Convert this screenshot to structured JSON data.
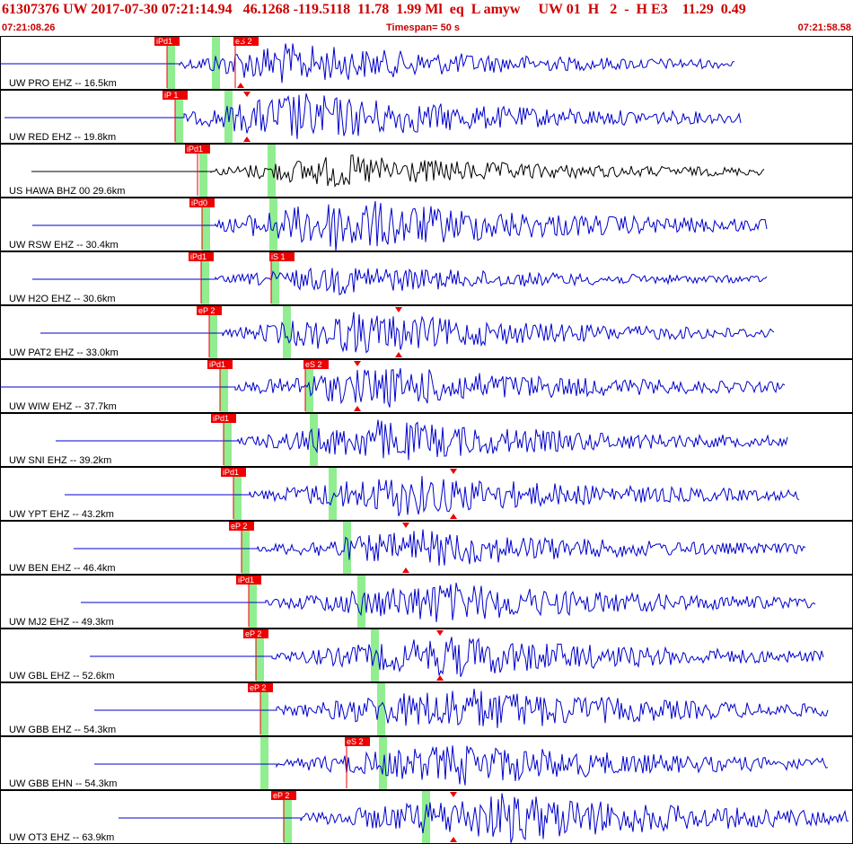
{
  "header": {
    "title": "61307376 UW 2017-07-30 07:21:14.94   46.1268 -119.5118  11.78  1.99 Ml  eq  L amyw     UW 01  H   2  -  H E3    11.29  0.49",
    "time_start": "07:21:08.26",
    "timespan": "Timespan=  50 s",
    "time_end": "07:21:58.58"
  },
  "colors": {
    "trace": "#0000cc",
    "trace_alt": "#000000",
    "pick": "#ee0000",
    "window": "#90ee90",
    "text": "#cc0000"
  },
  "traces": [
    {
      "label": "UW PRO EHZ -- 16.5km",
      "color": "#0000cc",
      "pre_start": 0,
      "onset": 200,
      "end": 818,
      "amp": 1.0,
      "p_label": "iPd1",
      "p_x": 186,
      "s_label": "eS 2",
      "s_x": 262,
      "green": [
        186,
        236
      ],
      "tri": 268
    },
    {
      "label": "UW RED EHZ -- 19.8km",
      "color": "#0000cc",
      "pre_start": 5,
      "onset": 205,
      "end": 825,
      "amp": 1.2,
      "p_label": "iP 1",
      "p_x": 195,
      "s_label": "",
      "s_x": 0,
      "green": [
        195,
        250
      ],
      "tri": 275
    },
    {
      "label": "US HAWA BHZ 00 29.6km",
      "color": "#000000",
      "pre_start": 35,
      "onset": 235,
      "end": 852,
      "amp": 0.8,
      "p_label": "iPd1",
      "p_x": 220,
      "s_label": "",
      "s_x": 0,
      "green": [
        222,
        298
      ],
      "tri": 0
    },
    {
      "label": "UW RSW EHZ -- 30.4km",
      "color": "#0000cc",
      "pre_start": 36,
      "onset": 240,
      "end": 855,
      "amp": 1.3,
      "p_label": "iPd0",
      "p_x": 225,
      "s_label": "",
      "s_x": 0,
      "green": [
        225,
        300
      ],
      "tri": 0
    },
    {
      "label": "UW H2O EHZ -- 30.6km",
      "color": "#0000cc",
      "pre_start": 36,
      "onset": 240,
      "end": 855,
      "amp": 0.7,
      "p_label": "iPd1",
      "p_x": 224,
      "s_label": "iS 1",
      "s_x": 302,
      "green": [
        224,
        302
      ],
      "tri": 0
    },
    {
      "label": "UW PAT2 EHZ -- 33.0km",
      "color": "#0000cc",
      "pre_start": 45,
      "onset": 248,
      "end": 862,
      "amp": 1.0,
      "p_label": "eP 2",
      "p_x": 233,
      "s_label": "",
      "s_x": 0,
      "green": [
        233,
        315
      ],
      "tri": 444
    },
    {
      "label": "UW WIW EHZ -- 37.7km",
      "color": "#0000cc",
      "pre_start": 0,
      "onset": 262,
      "end": 875,
      "amp": 1.0,
      "p_label": "iPd1",
      "p_x": 245,
      "s_label": "eS 2",
      "s_x": 340,
      "green": [
        245,
        340
      ],
      "tri": 398
    },
    {
      "label": "UW SNI EHZ -- 39.2km",
      "color": "#0000cc",
      "pre_start": 62,
      "onset": 265,
      "end": 878,
      "amp": 1.0,
      "p_label": "iPd1",
      "p_x": 249,
      "s_label": "",
      "s_x": 0,
      "green": [
        249,
        345
      ],
      "tri": 0
    },
    {
      "label": "UW YPT EHZ -- 43.2km",
      "color": "#0000cc",
      "pre_start": 72,
      "onset": 278,
      "end": 890,
      "amp": 1.0,
      "p_label": "iPd1",
      "p_x": 260,
      "s_label": "",
      "s_x": 0,
      "green": [
        260,
        366
      ],
      "tri": 505
    },
    {
      "label": "UW BEN EHZ -- 46.4km",
      "color": "#0000cc",
      "pre_start": 82,
      "onset": 287,
      "end": 898,
      "amp": 0.9,
      "p_label": "eP 2",
      "p_x": 269,
      "s_label": "",
      "s_x": 0,
      "green": [
        269,
        382
      ],
      "tri": 452
    },
    {
      "label": "UW MJ2 EHZ -- 49.3km",
      "color": "#0000cc",
      "pre_start": 90,
      "onset": 296,
      "end": 908,
      "amp": 1.0,
      "p_label": "iPd1",
      "p_x": 277,
      "s_label": "",
      "s_x": 0,
      "green": [
        277,
        398
      ],
      "tri": 0
    },
    {
      "label": "UW GBL EHZ -- 52.6km",
      "color": "#0000cc",
      "pre_start": 100,
      "onset": 303,
      "end": 918,
      "amp": 1.0,
      "p_label": "eP 2",
      "p_x": 285,
      "s_label": "",
      "s_x": 0,
      "green": [
        285,
        413
      ],
      "tri": 490
    },
    {
      "label": "UW GBB EHZ -- 54.3km",
      "color": "#0000cc",
      "pre_start": 105,
      "onset": 308,
      "end": 922,
      "amp": 1.1,
      "p_label": "eP 2",
      "p_x": 290,
      "s_label": "",
      "s_x": 0,
      "green": [
        290,
        420
      ],
      "tri": 0
    },
    {
      "label": "UW GBB EHN -- 54.3km",
      "color": "#0000cc",
      "pre_start": 105,
      "onset": 308,
      "end": 922,
      "amp": 1.0,
      "p_label": "",
      "p_x": 0,
      "s_label": "eS 2",
      "s_x": 386,
      "green": [
        290,
        422
      ],
      "tri": 0
    },
    {
      "label": "UW OT3 EHZ -- 63.9km",
      "color": "#0000cc",
      "pre_start": 132,
      "onset": 335,
      "end": 946,
      "amp": 1.2,
      "p_label": "eP 2",
      "p_x": 316,
      "s_label": "",
      "s_x": 0,
      "green": [
        316,
        470
      ],
      "tri": 505
    }
  ]
}
